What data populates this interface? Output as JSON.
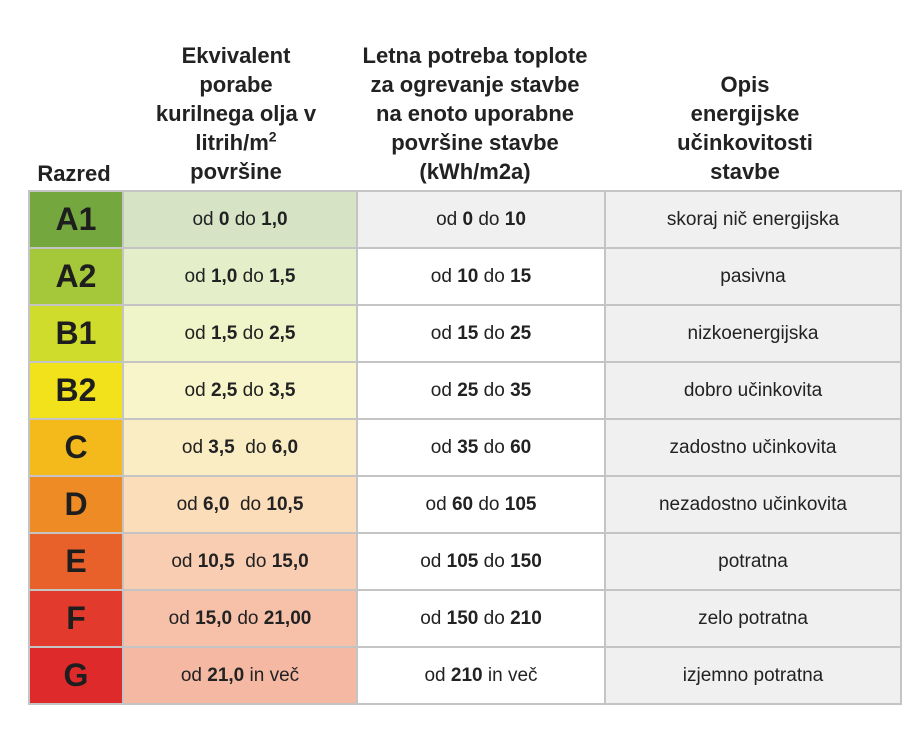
{
  "header": {
    "grade": "Razred",
    "oil": {
      "text": "Ekvivalent porabe kurilnega olja v litrih/m",
      "sup": "2",
      "after": " površine"
    },
    "heat": "Letna potreba toplote za ogrevanje stavbe na enoto uporabne površine stavbe (kWh/m2a)",
    "desc": "Opis energijske učinkovitosti stavbe"
  },
  "rows": [
    {
      "grade": "A1",
      "color": "#74a83f",
      "tint": "#d6e3c5",
      "oil": [
        "od ",
        "0",
        " do ",
        "1,0"
      ],
      "heat": [
        "od ",
        "0",
        " do ",
        "10"
      ],
      "desc": "skoraj nič energijska"
    },
    {
      "grade": "A2",
      "color": "#a5c83a",
      "tint": "#e4eec9",
      "oil": [
        "od ",
        "1,0",
        " do ",
        "1,5"
      ],
      "heat": [
        "od ",
        "10",
        " do ",
        "15"
      ],
      "desc": "pasivna"
    },
    {
      "grade": "B1",
      "color": "#cfdc2c",
      "tint": "#eff4c9",
      "oil": [
        "od ",
        "1,5",
        " do ",
        "2,5"
      ],
      "heat": [
        "od ",
        "15",
        " do ",
        "25"
      ],
      "desc": "nizkoenergijska"
    },
    {
      "grade": "B2",
      "color": "#f1e21c",
      "tint": "#f7f5c9",
      "oil": [
        "od ",
        "2,5",
        " do ",
        "3,5"
      ],
      "heat": [
        "od ",
        "25",
        " do ",
        "35"
      ],
      "desc": "dobro učinkovita"
    },
    {
      "grade": "C",
      "color": "#f4b91a",
      "tint": "#fbedc3",
      "oil": [
        "od ",
        "3,5",
        "  do ",
        "6,0"
      ],
      "heat": [
        "od ",
        "35",
        " do ",
        "60"
      ],
      "desc": "zadostno učinkovita"
    },
    {
      "grade": "D",
      "color": "#ee8b24",
      "tint": "#fbddb9",
      "oil": [
        "od ",
        "6,0",
        "  do ",
        "10,5"
      ],
      "heat": [
        "od ",
        "60",
        " do ",
        "105"
      ],
      "desc": "nezadostno učinkovita"
    },
    {
      "grade": "E",
      "color": "#e8612b",
      "tint": "#f8cdb2",
      "oil": [
        "od ",
        "10,5",
        "  do ",
        "15,0"
      ],
      "heat": [
        "od ",
        "105",
        " do ",
        "150"
      ],
      "desc": "potratna"
    },
    {
      "grade": "F",
      "color": "#e23b2d",
      "tint": "#f7c1a9",
      "oil": [
        "od ",
        "15,0",
        " do ",
        "21,00"
      ],
      "heat": [
        "od ",
        "150",
        " do ",
        "210"
      ],
      "desc": "zelo potratna"
    },
    {
      "grade": "G",
      "color": "#de2a2a",
      "tint": "#f5b9a3",
      "oil": [
        "od ",
        "21,0",
        " in več"
      ],
      "heat": [
        "od ",
        "210",
        " in več"
      ],
      "desc": "izjemno potratna"
    }
  ]
}
